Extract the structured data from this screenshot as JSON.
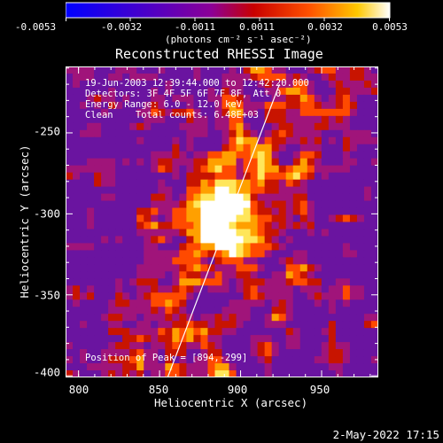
{
  "colorbar": {
    "tick_labels": [
      "-0.0053",
      "-0.0032",
      "-0.0011",
      "0.0011",
      "0.0032",
      "0.0053"
    ],
    "unit_label": "(photons cm⁻² s⁻¹ asec⁻²)",
    "colors": [
      "#0000ff",
      "#5a00c8",
      "#8c00b4",
      "#c80000",
      "#ff6400",
      "#ffc800",
      "#ffffff"
    ]
  },
  "chart_data": {
    "type": "heatmap",
    "title": "Reconstructed RHESSI Image",
    "xlabel": "Heliocentric X (arcsec)",
    "ylabel": "Heliocentric Y (arcsec)",
    "xlim": [
      792,
      985
    ],
    "ylim": [
      -401,
      -209
    ],
    "x_ticks": [
      800,
      850,
      900,
      950
    ],
    "y_ticks": [
      -250,
      -300,
      -350,
      -400
    ],
    "colorbar_range": [
      -0.0053,
      0.0053
    ],
    "peak": [
      894,
      -299
    ],
    "limb_line": {
      "x_bottom": 855,
      "y_bottom": -401,
      "x_top": 924,
      "y_top": -220
    },
    "annotations": [
      "19-Jun-2003 12:39:44.000 to 12:42:20.000",
      "Detectors: 3F 4F 5F 6F 7F 8F, Att 0",
      "Energy Range: 6.0 - 12.0 keV",
      "Clean    Total counts: 6.48E+03"
    ],
    "peak_label": "Position of Peak = [894,-299]"
  },
  "footer": "2-May-2022 17:15"
}
